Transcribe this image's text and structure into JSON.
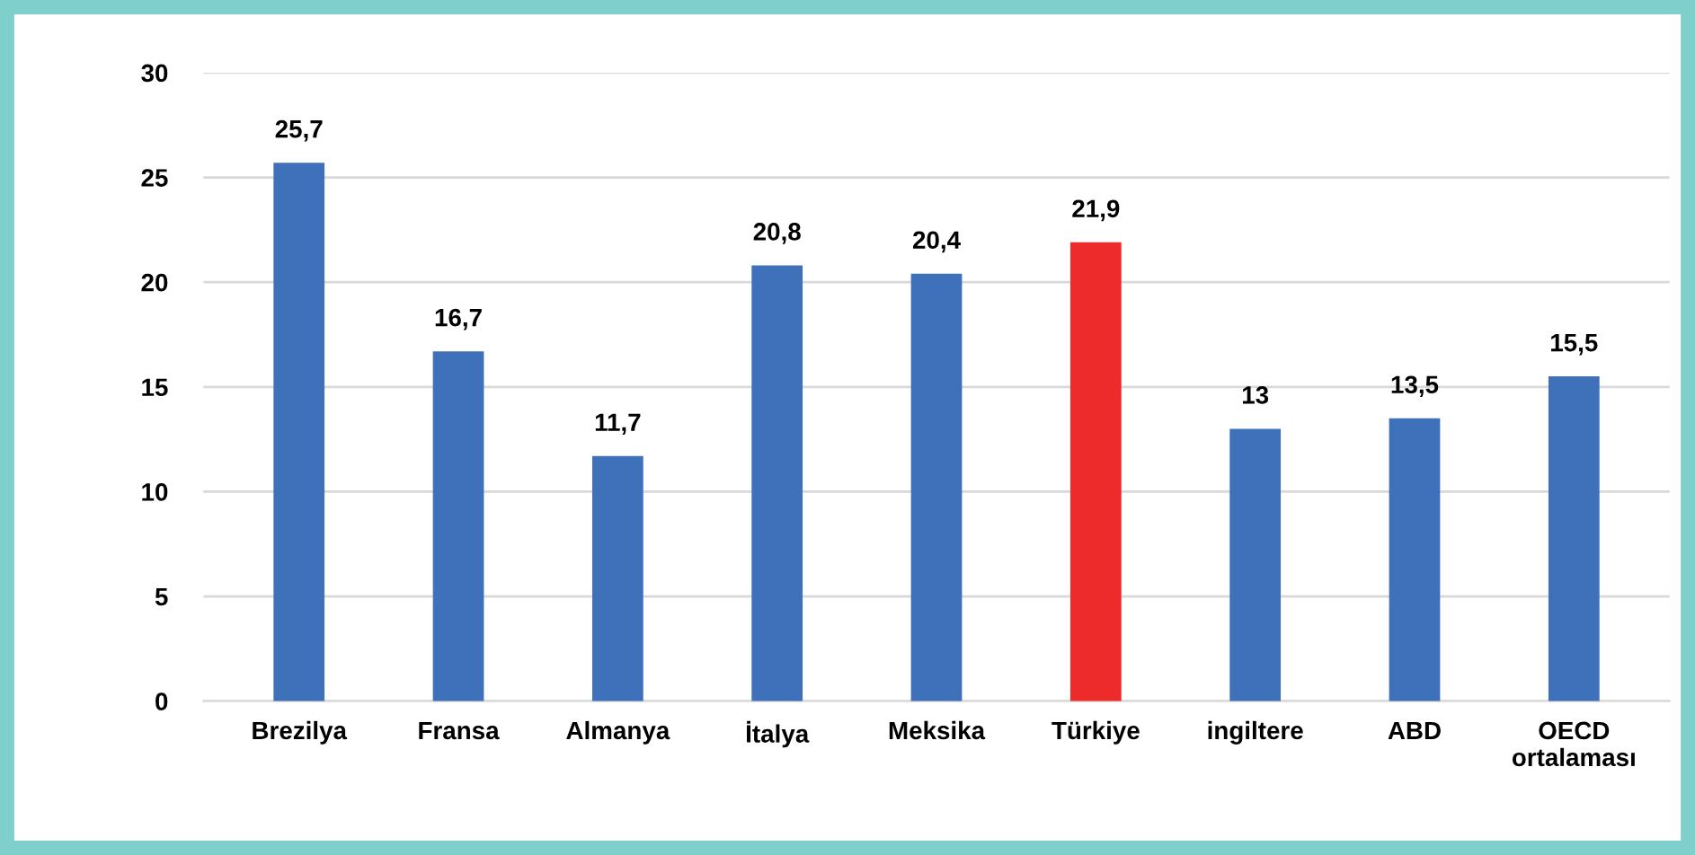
{
  "chart_data": {
    "type": "bar",
    "categories": [
      "Brezilya",
      "Fransa",
      "Almanya",
      "İtalya",
      "Meksika",
      "Türkiye",
      "ingiltere",
      "ABD",
      "OECD\nortalaması"
    ],
    "values": [
      25.7,
      16.7,
      11.7,
      20.8,
      20.4,
      21.9,
      13,
      13.5,
      15.5
    ],
    "colors": [
      "#3f70ba",
      "#3f70ba",
      "#3f70ba",
      "#3f70ba",
      "#3f70ba",
      "#ee2b2b",
      "#3f70ba",
      "#3f70ba",
      "#3f70ba"
    ],
    "value_labels": [
      "25,7",
      "16,7",
      "11,7",
      "20,8",
      "20,4",
      "21,9",
      "13",
      "13,5",
      "15,5"
    ],
    "ylim": [
      0,
      30
    ],
    "yticks": [
      0,
      5,
      10,
      15,
      20,
      25,
      30
    ],
    "grid": "y",
    "legend": false
  }
}
